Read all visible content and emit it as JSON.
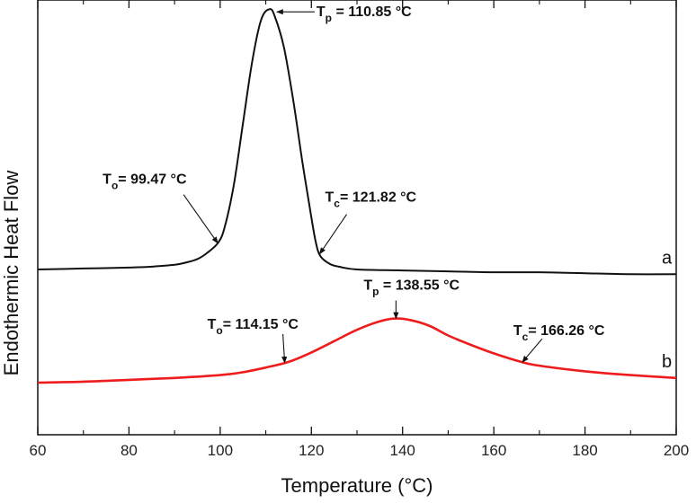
{
  "chart_data": {
    "type": "line",
    "xlabel": "Temperature (°C)",
    "ylabel": "Endothermic Heat Flow",
    "xlim": [
      60,
      200
    ],
    "x_ticks": [
      "60",
      "80",
      "100",
      "120",
      "140",
      "160",
      "180",
      "200"
    ],
    "grid": false,
    "colors": {
      "a": "#111111",
      "b": "#ee1c1c"
    },
    "series": [
      {
        "name": "a",
        "x": [
          60,
          70,
          80,
          85,
          90,
          93,
          95,
          97,
          99.5,
          101,
          103,
          105,
          107,
          109,
          110.85,
          112,
          114,
          116,
          118,
          120,
          121,
          122,
          124,
          126,
          130,
          140,
          150,
          160,
          170,
          180,
          190,
          200
        ],
        "y": [
          0.0,
          0.01,
          0.02,
          0.03,
          0.05,
          0.08,
          0.11,
          0.17,
          0.28,
          0.45,
          0.9,
          1.55,
          2.2,
          2.65,
          2.76,
          2.68,
          2.35,
          1.8,
          1.15,
          0.55,
          0.28,
          0.14,
          0.06,
          0.03,
          0.0,
          -0.01,
          -0.02,
          -0.03,
          -0.03,
          -0.04,
          -0.05,
          -0.05
        ]
      },
      {
        "name": "b",
        "x": [
          60,
          70,
          80,
          90,
          100,
          105,
          110,
          115,
          120,
          125,
          130,
          135,
          138.55,
          142,
          146,
          150,
          155,
          160,
          166,
          170,
          180,
          190,
          200
        ],
        "y": [
          -1.2,
          -1.19,
          -1.17,
          -1.15,
          -1.12,
          -1.09,
          -1.04,
          -0.98,
          -0.88,
          -0.76,
          -0.64,
          -0.55,
          -0.52,
          -0.54,
          -0.6,
          -0.7,
          -0.8,
          -0.89,
          -0.98,
          -1.02,
          -1.08,
          -1.12,
          -1.15
        ]
      }
    ],
    "annotations": [
      {
        "prefix": "T",
        "sub": "o",
        "value": "= 99.47 °C",
        "series": "a",
        "x": 99.47
      },
      {
        "prefix": "T",
        "sub": "p",
        "value": " = 110.85 °C",
        "series": "a",
        "x": 110.85
      },
      {
        "prefix": "T",
        "sub": "c",
        "value": "= 121.82 °C",
        "series": "a",
        "x": 121.82
      },
      {
        "prefix": "T",
        "sub": "o",
        "value": "= 114.15 °C",
        "series": "b",
        "x": 114.15
      },
      {
        "prefix": "T",
        "sub": "p",
        "value": " = 138.55 °C",
        "series": "b",
        "x": 138.55
      },
      {
        "prefix": "T",
        "sub": "c",
        "value": "= 166.26 °C",
        "series": "b",
        "x": 166.26
      }
    ]
  }
}
